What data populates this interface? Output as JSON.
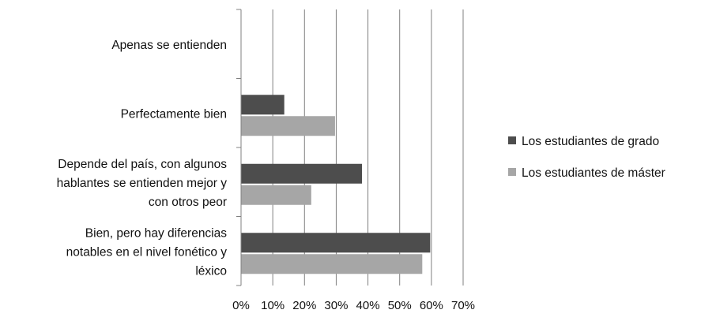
{
  "chart_data": {
    "type": "bar",
    "orientation": "horizontal",
    "categories": [
      [
        "Apenas se entienden"
      ],
      [
        "Perfectamente bien"
      ],
      [
        "Depende del país, con algunos",
        "hablantes se entienden mejor y",
        "con otros peor"
      ],
      [
        "Bien, pero hay diferencias",
        "notables en el nivel fonético y",
        "léxico"
      ]
    ],
    "series": [
      {
        "name": "Los estudiantes de grado",
        "color": "#4d4d4d",
        "values": [
          0,
          13.5,
          38,
          59.5
        ]
      },
      {
        "name": "Los estudiantes de máster",
        "color": "#a6a6a6",
        "values": [
          0,
          29.5,
          22,
          57
        ]
      }
    ],
    "xlim": [
      0,
      70
    ],
    "xticks": [
      0,
      10,
      20,
      30,
      40,
      50,
      60,
      70
    ],
    "tick_format": "{v}%",
    "grid": true,
    "legend_position": "right",
    "title": "",
    "xlabel": "",
    "ylabel": ""
  }
}
